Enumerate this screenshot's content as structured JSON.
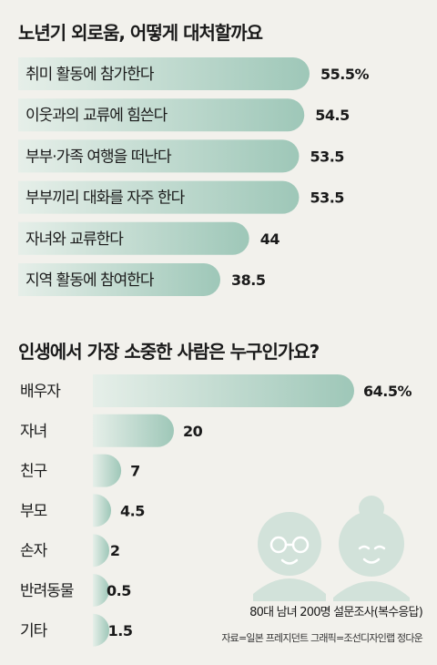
{
  "chart_data": [
    {
      "type": "bar",
      "orientation": "horizontal",
      "title": "노년기 외로움, 어떻게 대처할까요",
      "categories": [
        "취미 활동에 참가한다",
        "이웃과의 교류에 힘쓴다",
        "부부·가족 여행을 떠난다",
        "부부끼리 대화를 자주 한다",
        "자녀와 교류한다",
        "지역 활동에 참여한다"
      ],
      "values": [
        55.5,
        54.5,
        53.5,
        53.5,
        44,
        38.5
      ],
      "value_labels": [
        "55.5%",
        "54.5",
        "53.5",
        "53.5",
        "44",
        "38.5"
      ],
      "label_position": "inside-bar",
      "bar_color": "#9ec7b8"
    },
    {
      "type": "bar",
      "orientation": "horizontal",
      "title": "인생에서 가장 소중한 사람은 누구인가요?",
      "categories": [
        "배우자",
        "자녀",
        "친구",
        "부모",
        "손자",
        "반려동물",
        "기타"
      ],
      "values": [
        64.5,
        20,
        7,
        4.5,
        2,
        0.5,
        1.5
      ],
      "value_labels": [
        "64.5%",
        "20",
        "7",
        "4.5",
        "2",
        "0.5",
        "1.5"
      ],
      "label_position": "left-of-bar",
      "bar_color": "#c9e0d6"
    }
  ],
  "survey_note": "80대 남녀 200명 설문조사(복수응답)",
  "source": "자료=일본 프레지던트  그래픽=조선디자인랩 정다운",
  "illustration": "elderly-couple-icon"
}
